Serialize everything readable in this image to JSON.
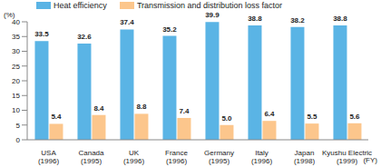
{
  "chart_data": {
    "type": "bar",
    "categories": [
      "USA (1996)",
      "Canada (1995)",
      "UK (1996)",
      "France (1996)",
      "Germany (1995)",
      "Italy (1996)",
      "Japan (1998)",
      "Kyushu Electric (1999)"
    ],
    "series": [
      {
        "name": "Heat efficiency",
        "color": "#5ab4e5",
        "values": [
          33.5,
          32.6,
          37.4,
          35.2,
          39.9,
          38.8,
          38.2,
          38.8
        ]
      },
      {
        "name": "Transmission and distribution loss factor",
        "color": "#fcc68c",
        "values": [
          5.4,
          8.4,
          8.8,
          7.4,
          5.0,
          6.4,
          5.5,
          5.6
        ],
        "value_labels": [
          "5.4",
          "8.4",
          "8.8",
          "7.4",
          "5.0",
          "6.4",
          "5.5",
          "5.6"
        ]
      }
    ],
    "y_label": "(%)",
    "x_label": "(FY)",
    "ylim": [
      0,
      40
    ],
    "yticks": [
      0,
      5,
      10,
      15,
      20,
      25,
      30,
      35,
      40
    ],
    "grid": false,
    "data_labels": true,
    "legend": "top"
  }
}
